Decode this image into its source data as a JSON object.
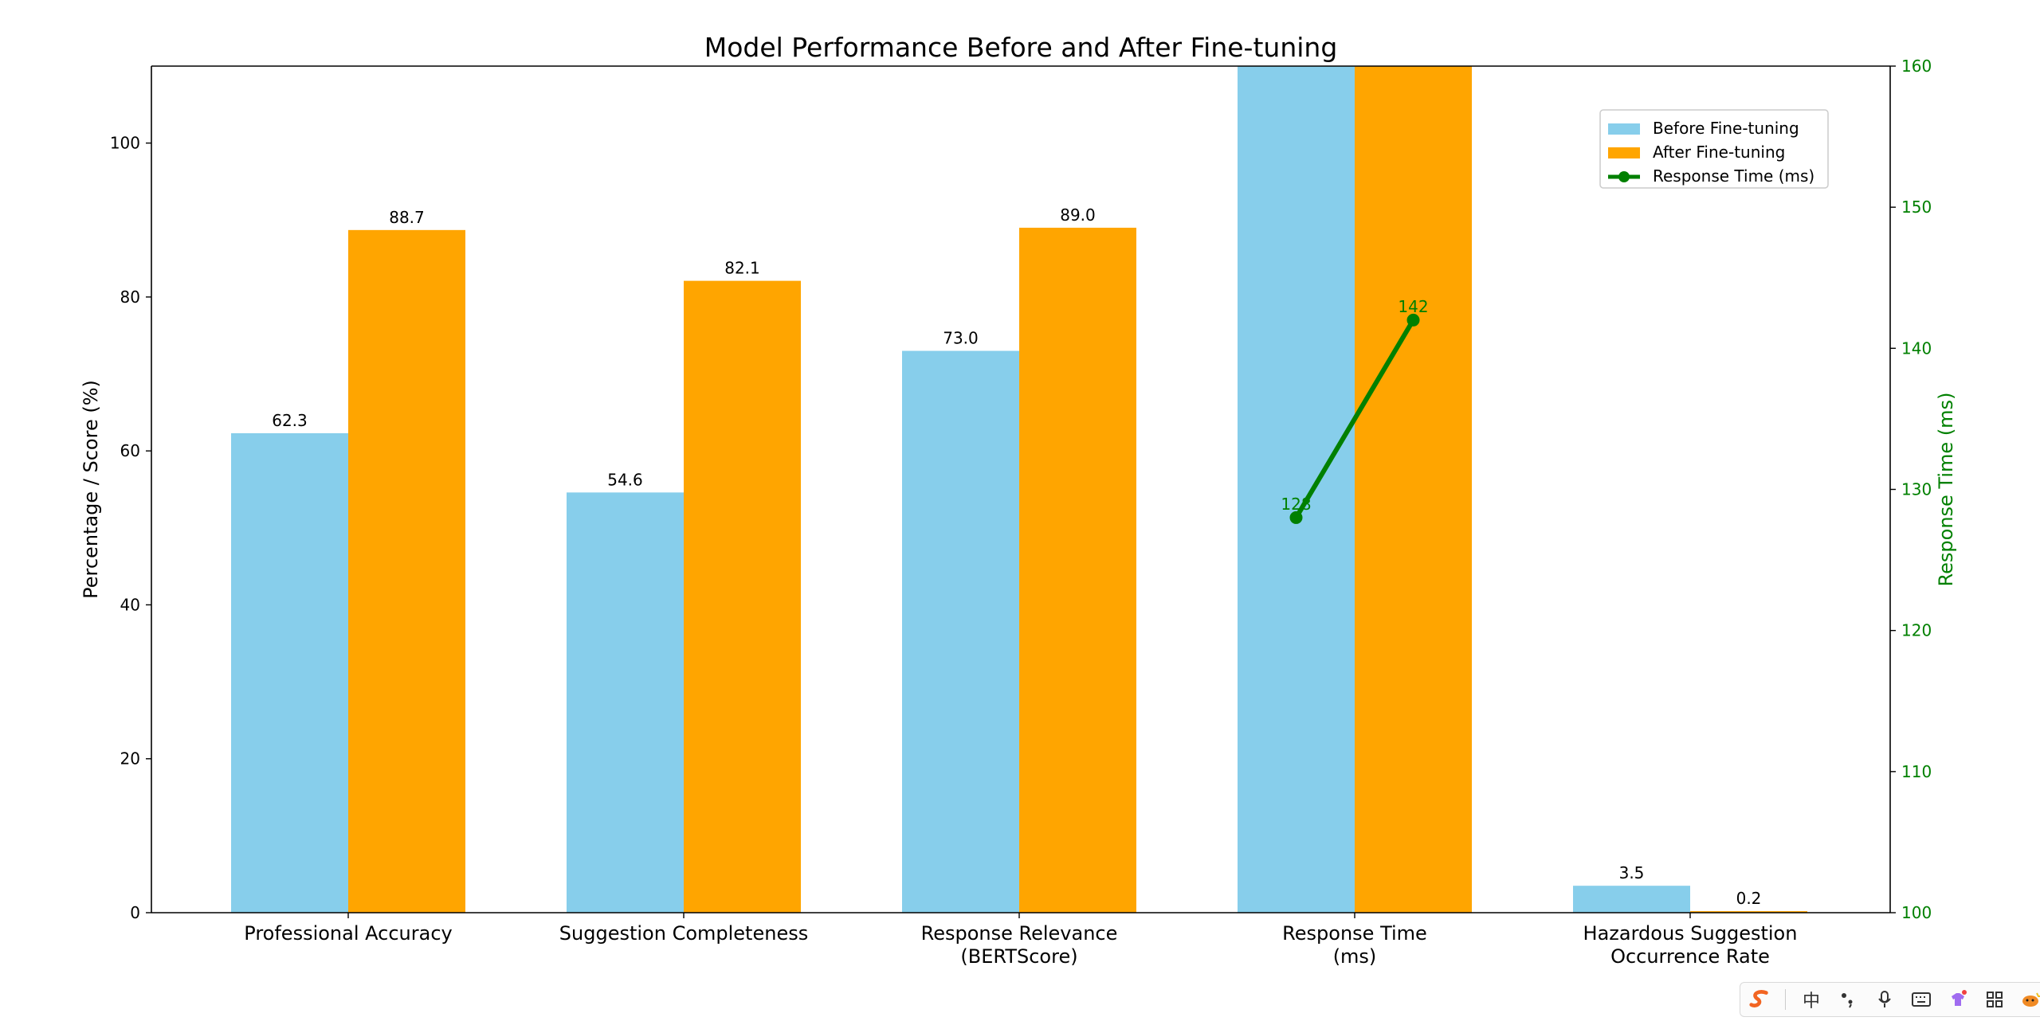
{
  "chart_data": {
    "type": "bar",
    "title": "Model Performance Before and After Fine-tuning",
    "ylabel": "Percentage / Score (%)",
    "y2label": "Response Time (ms)",
    "ylim": [
      0,
      110
    ],
    "y2lim": [
      100,
      160
    ],
    "yticks": [
      0,
      20,
      40,
      60,
      80,
      100
    ],
    "y2ticks": [
      100,
      110,
      120,
      130,
      140,
      150,
      160
    ],
    "categories": [
      [
        "Professional Accuracy"
      ],
      [
        "Suggestion Completeness"
      ],
      [
        "Response Relevance",
        "(BERTScore)"
      ],
      [
        "Response Time",
        "(ms)"
      ],
      [
        "Hazardous Suggestion",
        "Occurrence Rate"
      ]
    ],
    "series": [
      {
        "name": "Before Fine-tuning",
        "color": "#87CEEB",
        "values": [
          62.3,
          54.6,
          73.0,
          128,
          3.5
        ],
        "labels": [
          "62.3",
          "54.6",
          "73.0",
          "",
          "3.5"
        ]
      },
      {
        "name": "After Fine-tuning",
        "color": "#FFA500",
        "values": [
          88.7,
          82.1,
          89.0,
          142,
          0.2
        ],
        "labels": [
          "88.7",
          "82.1",
          "89.0",
          "",
          "0.2"
        ]
      }
    ],
    "line_series": {
      "name": "Response Time (ms)",
      "color": "#008000",
      "category_index": 3,
      "values": [
        128,
        142
      ],
      "labels": [
        "128",
        "142"
      ]
    },
    "legend_position": "top-right"
  },
  "ime_toolbar": {
    "items": [
      "sogou-logo-icon",
      "chinese-mode",
      "punctuation-icon",
      "microphone-icon",
      "keyboard-icon",
      "skin-icon",
      "toolbox-icon",
      "mascot-icon"
    ],
    "chinese_mode_label": "中"
  }
}
